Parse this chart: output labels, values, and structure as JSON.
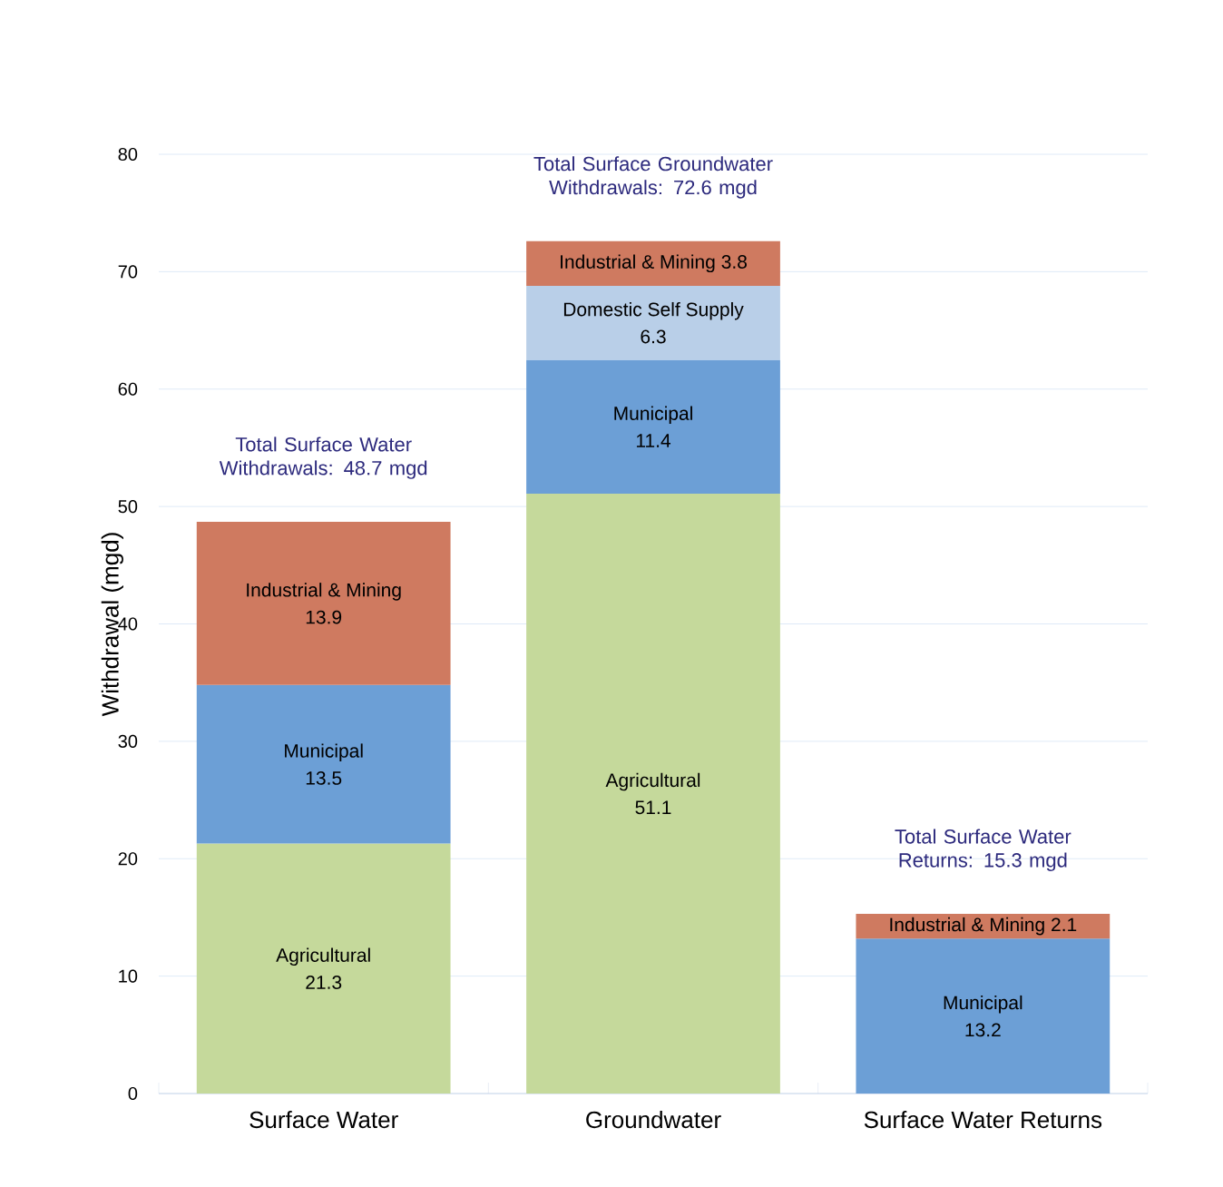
{
  "chart_data": {
    "type": "bar",
    "stacked": true,
    "ylabel": "Withdrawal (mgd)",
    "categories": [
      "Surface Water",
      "Groundwater",
      "Surface Water Returns"
    ],
    "series": [
      {
        "name": "Agricultural",
        "color": "#c5d99b",
        "values": [
          21.3,
          51.1,
          null
        ],
        "value_labels": [
          "21.3",
          "51.1",
          null
        ]
      },
      {
        "name": "Municipal",
        "color": "#6c9fd6",
        "values": [
          13.5,
          11.4,
          13.2
        ],
        "value_labels": [
          "13.5",
          "11.4",
          "13.2"
        ]
      },
      {
        "name": "Domestic Self Supply",
        "color": "#b9cfe8",
        "values": [
          null,
          6.3,
          null
        ],
        "value_labels": [
          null,
          "6.3",
          null
        ]
      },
      {
        "name": "Industrial & Mining",
        "color": "#cf7a60",
        "values": [
          13.9,
          3.8,
          2.1
        ],
        "value_labels": [
          "13.9",
          "3.8",
          "2.1"
        ]
      }
    ],
    "totals": [
      "Total Surface Water Withdrawals: 48.7 mgd",
      "Total Surface Groundwater Withdrawals: 72.6 mgd",
      "Total Surface Water Returns: 15.3 mgd"
    ],
    "ylim": [
      0,
      80
    ],
    "yticks": [
      0,
      10,
      20,
      30,
      40,
      50,
      60,
      70,
      80
    ],
    "grid": "y"
  }
}
